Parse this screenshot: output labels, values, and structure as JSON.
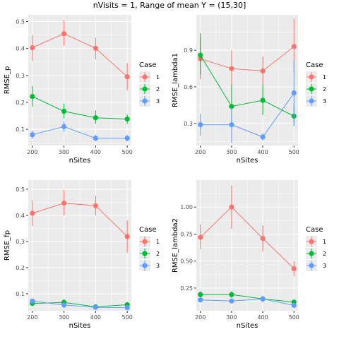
{
  "figure_title": "nVisits = 1, Range of mean Y = (15,30]",
  "colors": {
    "panel_bg": "#EBEBEB",
    "grid": "#FFFFFF",
    "case_1": "#F8766D",
    "case_2": "#00BA38",
    "case_3": "#619CFF"
  },
  "chart_data": [
    {
      "type": "line",
      "xlabel": "nSites",
      "ylabel": "RMSE_p",
      "x": [
        200,
        300,
        400,
        500
      ],
      "xlim": [
        187,
        513
      ],
      "ylim": [
        0.04,
        0.525
      ],
      "yticks": [
        0.1,
        0.2,
        0.3,
        0.4,
        0.5
      ],
      "ytick_labels": [
        "0.1",
        "0.2",
        "0.3",
        "0.4",
        "0.5"
      ],
      "legend": {
        "title": "Case",
        "position": "right"
      },
      "series": [
        {
          "name": "1",
          "values": [
            0.403,
            0.455,
            0.401,
            0.295
          ],
          "lower": [
            0.355,
            0.41,
            0.36,
            0.245
          ],
          "upper": [
            0.45,
            0.505,
            0.44,
            0.345
          ]
        },
        {
          "name": "2",
          "values": [
            0.222,
            0.167,
            0.143,
            0.138
          ],
          "lower": [
            0.185,
            0.14,
            0.12,
            0.12
          ],
          "upper": [
            0.26,
            0.195,
            0.17,
            0.155
          ]
        },
        {
          "name": "3",
          "values": [
            0.08,
            0.11,
            0.067,
            0.067
          ],
          "lower": [
            0.065,
            0.09,
            0.055,
            0.055
          ],
          "upper": [
            0.095,
            0.13,
            0.08,
            0.08
          ]
        }
      ]
    },
    {
      "type": "line",
      "xlabel": "nSites",
      "ylabel": "RMSE_lambda1",
      "x": [
        200,
        300,
        400,
        500
      ],
      "xlim": [
        187,
        513
      ],
      "ylim": [
        0.12,
        1.19
      ],
      "yticks": [
        0.3,
        0.6,
        0.9
      ],
      "ytick_labels": [
        "0.3",
        "0.6",
        "0.9"
      ],
      "legend": {
        "title": "Case",
        "position": "right"
      },
      "series": [
        {
          "name": "1",
          "values": [
            0.83,
            0.75,
            0.73,
            0.93
          ],
          "lower": [
            0.66,
            0.6,
            0.62,
            0.72
          ],
          "upper": [
            1.0,
            0.9,
            0.85,
            1.16
          ]
        },
        {
          "name": "2",
          "values": [
            0.86,
            0.44,
            0.49,
            0.36
          ],
          "lower": [
            0.7,
            0.3,
            0.37,
            0.28
          ],
          "upper": [
            1.04,
            0.62,
            0.62,
            0.46
          ]
        },
        {
          "name": "3",
          "values": [
            0.29,
            0.29,
            0.19,
            0.55
          ],
          "lower": [
            0.2,
            0.14,
            0.16,
            0.28
          ],
          "upper": [
            0.38,
            0.43,
            0.22,
            0.82
          ]
        }
      ]
    },
    {
      "type": "line",
      "xlabel": "nSites",
      "ylabel": "RMSE_fp",
      "x": [
        200,
        300,
        400,
        500
      ],
      "xlim": [
        187,
        513
      ],
      "ylim": [
        0.035,
        0.535
      ],
      "yticks": [
        0.1,
        0.2,
        0.3,
        0.4,
        0.5
      ],
      "ytick_labels": [
        "0.1",
        "0.2",
        "0.3",
        "0.4",
        "0.5"
      ],
      "legend": {
        "title": "Case",
        "position": "right"
      },
      "series": [
        {
          "name": "1",
          "values": [
            0.408,
            0.447,
            0.437,
            0.319
          ],
          "lower": [
            0.36,
            0.4,
            0.4,
            0.258
          ],
          "upper": [
            0.458,
            0.497,
            0.475,
            0.38
          ]
        },
        {
          "name": "2",
          "values": [
            0.063,
            0.067,
            0.05,
            0.058
          ],
          "lower": [
            0.055,
            0.055,
            0.045,
            0.05
          ],
          "upper": [
            0.075,
            0.08,
            0.055,
            0.068
          ]
        },
        {
          "name": "3",
          "values": [
            0.072,
            0.057,
            0.048,
            0.047
          ],
          "lower": [
            0.062,
            0.045,
            0.043,
            0.04
          ],
          "upper": [
            0.082,
            0.069,
            0.053,
            0.054
          ]
        }
      ]
    },
    {
      "type": "line",
      "xlabel": "nSites",
      "ylabel": "RMSE_lambda2",
      "x": [
        200,
        300,
        400,
        500
      ],
      "xlim": [
        187,
        513
      ],
      "ylim": [
        0.04,
        1.25
      ],
      "yticks": [
        0.25,
        0.5,
        0.75,
        1.0
      ],
      "ytick_labels": [
        "0.25",
        "0.50",
        "0.75",
        "1.00"
      ],
      "legend": {
        "title": "Case",
        "position": "right"
      },
      "series": [
        {
          "name": "1",
          "values": [
            0.72,
            1.0,
            0.71,
            0.43
          ],
          "lower": [
            0.61,
            0.8,
            0.59,
            0.36
          ],
          "upper": [
            0.84,
            1.2,
            0.83,
            0.5
          ]
        },
        {
          "name": "2",
          "values": [
            0.19,
            0.19,
            0.15,
            0.12
          ],
          "lower": [
            0.16,
            0.16,
            0.13,
            0.1
          ],
          "upper": [
            0.22,
            0.22,
            0.17,
            0.14
          ]
        },
        {
          "name": "3",
          "values": [
            0.14,
            0.13,
            0.15,
            0.09
          ],
          "lower": [
            0.12,
            0.11,
            0.12,
            0.08
          ],
          "upper": [
            0.16,
            0.15,
            0.18,
            0.1
          ]
        }
      ]
    }
  ]
}
